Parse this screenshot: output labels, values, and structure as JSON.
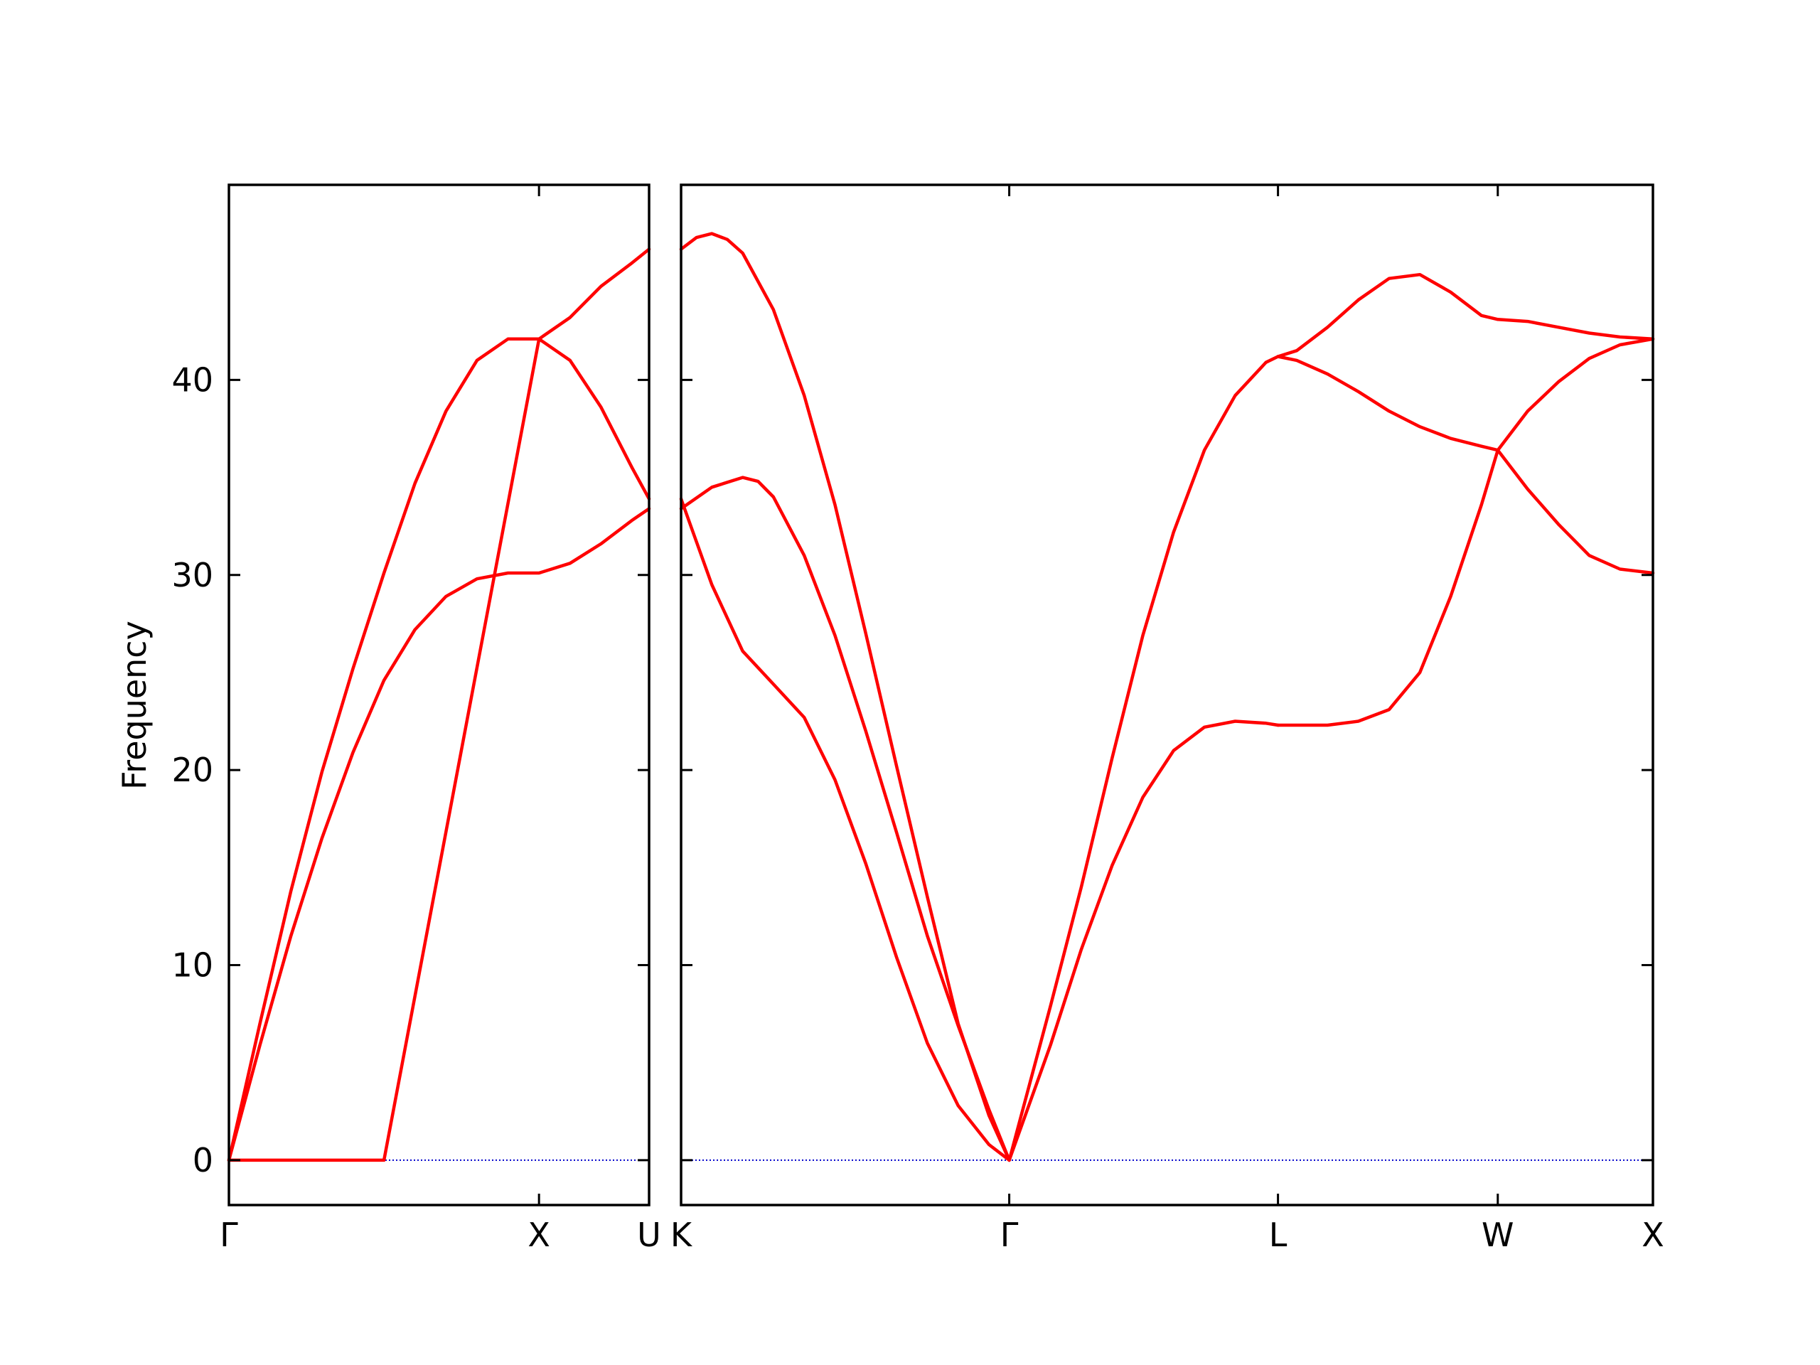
{
  "chart_data": {
    "type": "line",
    "ylabel": "Frequency",
    "ylim": [
      -2.3,
      50
    ],
    "yticks": [
      0,
      10,
      20,
      30,
      40
    ],
    "grid": false,
    "colors": {
      "band": "#ff0000",
      "zero_line": "#0000cc",
      "axes": "#000000"
    },
    "panels": [
      {
        "id": "left",
        "xlim": [
          0,
          1.355
        ],
        "xticks": [
          {
            "pos": 0,
            "label": "Γ"
          },
          {
            "pos": 1.0,
            "label": "X"
          },
          {
            "pos": 1.355,
            "label": "U"
          }
        ],
        "series": [
          {
            "x": [
              0,
              0.1,
              0.2,
              0.3,
              0.4,
              0.5,
              0.6,
              0.7,
              0.8,
              0.9,
              1.0,
              1.1,
              1.2,
              1.3,
              1.355
            ],
            "y": [
              0,
              7.0,
              13.8,
              19.9,
              25.2,
              30.1,
              34.7,
              38.4,
              41.0,
              42.1,
              42.1,
              41.0,
              38.6,
              35.5,
              33.9
            ]
          },
          {
            "x": [
              0,
              0.1,
              0.2,
              0.3,
              0.4,
              0.5,
              0.6,
              0.7,
              0.8,
              0.9,
              1.0,
              1.1,
              1.2,
              1.3,
              1.355
            ],
            "y": [
              0,
              5.9,
              11.5,
              16.5,
              20.9,
              24.6,
              27.2,
              28.9,
              29.8,
              30.1,
              30.1,
              30.6,
              31.6,
              32.8,
              33.4
            ]
          },
          {
            "x": [
              0,
              0.5,
              1.0,
              1.1,
              1.2,
              1.3,
              1.355
            ],
            "y": [
              0,
              0,
              42.1,
              43.2,
              44.8,
              46.0,
              46.7
            ]
          }
        ]
      },
      {
        "id": "right",
        "xlim": [
          0,
          3.157
        ],
        "xticks": [
          {
            "pos": 0,
            "label": "K"
          },
          {
            "pos": 1.066,
            "label": "Γ"
          },
          {
            "pos": 1.939,
            "label": "L"
          },
          {
            "pos": 2.653,
            "label": "W"
          },
          {
            "pos": 3.157,
            "label": "X"
          }
        ],
        "series": [
          {
            "x": [
              0,
              0.05,
              0.1,
              0.15,
              0.2,
              0.3,
              0.4,
              0.5,
              0.6,
              0.7,
              0.8,
              0.9,
              1.0,
              1.066
            ],
            "y": [
              46.7,
              47.3,
              47.5,
              47.2,
              46.5,
              43.6,
              39.2,
              33.6,
              27.0,
              20.2,
              13.5,
              7.0,
              2.3,
              0
            ]
          },
          {
            "x": [
              0,
              0.1,
              0.2,
              0.25,
              0.3,
              0.4,
              0.5,
              0.6,
              0.7,
              0.8,
              0.9,
              1.0,
              1.066
            ],
            "y": [
              33.4,
              34.5,
              35.0,
              34.8,
              34.0,
              31.0,
              26.9,
              22.0,
              16.8,
              11.5,
              6.9,
              2.6,
              0
            ]
          },
          {
            "x": [
              0,
              0.1,
              0.2,
              0.3,
              0.4,
              0.5,
              0.6,
              0.7,
              0.8,
              0.9,
              1.0,
              1.066
            ],
            "y": [
              33.9,
              29.5,
              26.1,
              24.4,
              22.7,
              19.5,
              15.2,
              10.4,
              6.0,
              2.8,
              0.8,
              0
            ]
          },
          {
            "x": [
              1.066,
              1.2,
              1.3,
              1.4,
              1.5,
              1.6,
              1.7,
              1.8,
              1.9,
              1.939
            ],
            "y": [
              0,
              7.9,
              14.0,
              20.6,
              26.9,
              32.2,
              36.4,
              39.2,
              40.9,
              41.2
            ]
          },
          {
            "x": [
              1.066,
              1.2,
              1.3,
              1.4,
              1.5,
              1.6,
              1.7,
              1.8,
              1.9,
              1.939
            ],
            "y": [
              0,
              5.9,
              10.8,
              15.1,
              18.6,
              21.0,
              22.2,
              22.5,
              22.4,
              22.3
            ]
          },
          {
            "x": [
              1.939,
              2.0,
              2.1,
              2.2,
              2.3,
              2.4,
              2.5,
              2.6,
              2.653
            ],
            "y": [
              22.3,
              22.3,
              22.3,
              22.5,
              23.1,
              25.0,
              28.9,
              33.6,
              36.4
            ]
          },
          {
            "x": [
              1.939,
              2.0,
              2.1,
              2.2,
              2.3,
              2.4,
              2.5,
              2.6,
              2.653
            ],
            "y": [
              41.2,
              41.0,
              40.3,
              39.4,
              38.4,
              37.6,
              37.0,
              36.6,
              36.4
            ]
          },
          {
            "x": [
              1.939,
              2.0,
              2.1,
              2.2,
              2.3,
              2.4,
              2.5,
              2.6,
              2.653
            ],
            "y": [
              41.2,
              41.5,
              42.7,
              44.1,
              45.2,
              45.4,
              44.5,
              43.3,
              43.1
            ]
          },
          {
            "x": [
              2.653,
              2.75,
              2.85,
              2.95,
              3.05,
              3.157
            ],
            "y": [
              43.1,
              43.0,
              42.7,
              42.4,
              42.2,
              42.1
            ]
          },
          {
            "x": [
              2.653,
              2.75,
              2.85,
              2.95,
              3.05,
              3.157
            ],
            "y": [
              36.4,
              38.4,
              39.9,
              41.1,
              41.8,
              42.1
            ]
          },
          {
            "x": [
              2.653,
              2.75,
              2.85,
              2.95,
              3.05,
              3.157
            ],
            "y": [
              36.4,
              34.4,
              32.6,
              31.0,
              30.3,
              30.1
            ]
          }
        ]
      }
    ]
  }
}
